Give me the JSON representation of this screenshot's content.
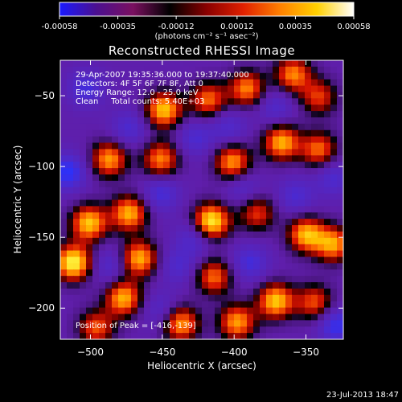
{
  "colorbar": {
    "tick_labels": [
      "-0.00058",
      "-0.00035",
      "-0.00012",
      "0.00012",
      "0.00035",
      "0.00058"
    ],
    "tick_values": [
      -0.00058,
      -0.00035,
      -0.00012,
      0.00012,
      0.00035,
      0.00058
    ],
    "range": [
      -0.00058,
      0.00058
    ],
    "unit_label": "(photons cm⁻² s⁻¹ asec⁻²)",
    "colors": [
      "#1a1aff",
      "#4b1090",
      "#7a1060",
      "#000000",
      "#8a0000",
      "#e02000",
      "#ff8000",
      "#ffd000",
      "#ffffff"
    ]
  },
  "chart_data": {
    "type": "heatmap",
    "title": "Reconstructed RHESSI Image",
    "xlabel": "Heliocentric X (arcsec)",
    "ylabel": "Heliocentric Y (arcsec)",
    "xlim": [
      -521,
      -324
    ],
    "ylim": [
      -222,
      -25
    ],
    "x_ticks": [
      -500,
      -450,
      -400,
      -350
    ],
    "x_tick_labels": [
      "−500",
      "−450",
      "−400",
      "−350"
    ],
    "y_ticks": [
      -50,
      -100,
      -150,
      -200
    ],
    "y_tick_labels": [
      "−50",
      "−100",
      "−150",
      "−200"
    ],
    "grid": false,
    "annotations": [
      "29-Apr-2007 19:35:36.000 to 19:37:40.000",
      "Detectors: 4F 5F 6F 7F 8F, Att 0",
      "Energy Range: 12.0 - 25.0 keV",
      "Clean     Total counts: 5.40E+03"
    ],
    "peak_label": "Position of Peak = [-416,-139]",
    "peak": [
      -416,
      -139
    ],
    "hotspots": [
      {
        "x": -512,
        "y": -168,
        "v": 1.0
      },
      {
        "x": -501,
        "y": -140,
        "v": 0.85
      },
      {
        "x": -473,
        "y": -133,
        "v": 0.8
      },
      {
        "x": -487,
        "y": -95,
        "v": 0.75
      },
      {
        "x": -451,
        "y": -95,
        "v": 0.7
      },
      {
        "x": -449,
        "y": -60,
        "v": 0.85
      },
      {
        "x": -418,
        "y": -53,
        "v": 0.65
      },
      {
        "x": -416,
        "y": -139,
        "v": 1.0
      },
      {
        "x": -401,
        "y": -97,
        "v": 0.75
      },
      {
        "x": -391,
        "y": -45,
        "v": 0.7
      },
      {
        "x": -367,
        "y": -83,
        "v": 0.8
      },
      {
        "x": -359,
        "y": -35,
        "v": 0.7
      },
      {
        "x": -341,
        "y": -88,
        "v": 0.65
      },
      {
        "x": -384,
        "y": -133,
        "v": 0.55
      },
      {
        "x": -350,
        "y": -148,
        "v": 0.8
      },
      {
        "x": -331,
        "y": -155,
        "v": 0.75
      },
      {
        "x": -371,
        "y": -195,
        "v": 0.85
      },
      {
        "x": -398,
        "y": -210,
        "v": 0.75
      },
      {
        "x": -466,
        "y": -165,
        "v": 0.8
      },
      {
        "x": -477,
        "y": -193,
        "v": 0.8
      },
      {
        "x": -437,
        "y": -211,
        "v": 0.75
      },
      {
        "x": -414,
        "y": -178,
        "v": 0.65
      },
      {
        "x": -344,
        "y": -196,
        "v": 0.6
      },
      {
        "x": -341,
        "y": -51,
        "v": 0.55
      },
      {
        "x": -496,
        "y": -214,
        "v": 0.6
      },
      {
        "x": -503,
        "y": -45,
        "v": -0.7
      },
      {
        "x": -516,
        "y": -104,
        "v": -1.0
      },
      {
        "x": -473,
        "y": -73,
        "v": -0.6
      },
      {
        "x": -451,
        "y": -119,
        "v": -0.7
      },
      {
        "x": -427,
        "y": -80,
        "v": -0.6
      },
      {
        "x": -427,
        "y": -150,
        "v": -0.65
      },
      {
        "x": -439,
        "y": -170,
        "v": -0.55
      },
      {
        "x": -389,
        "y": -168,
        "v": -0.7
      },
      {
        "x": -357,
        "y": -121,
        "v": -0.6
      },
      {
        "x": -331,
        "y": -108,
        "v": -0.6
      },
      {
        "x": -329,
        "y": -212,
        "v": -0.9
      },
      {
        "x": -371,
        "y": -58,
        "v": -0.55
      },
      {
        "x": -404,
        "y": -72,
        "v": -0.55
      },
      {
        "x": -487,
        "y": -170,
        "v": -0.55
      },
      {
        "x": -451,
        "y": -201,
        "v": -0.5
      },
      {
        "x": -394,
        "y": -115,
        "v": -0.5
      }
    ]
  },
  "footer": {
    "date": "23-Jul-2013 18:47"
  }
}
